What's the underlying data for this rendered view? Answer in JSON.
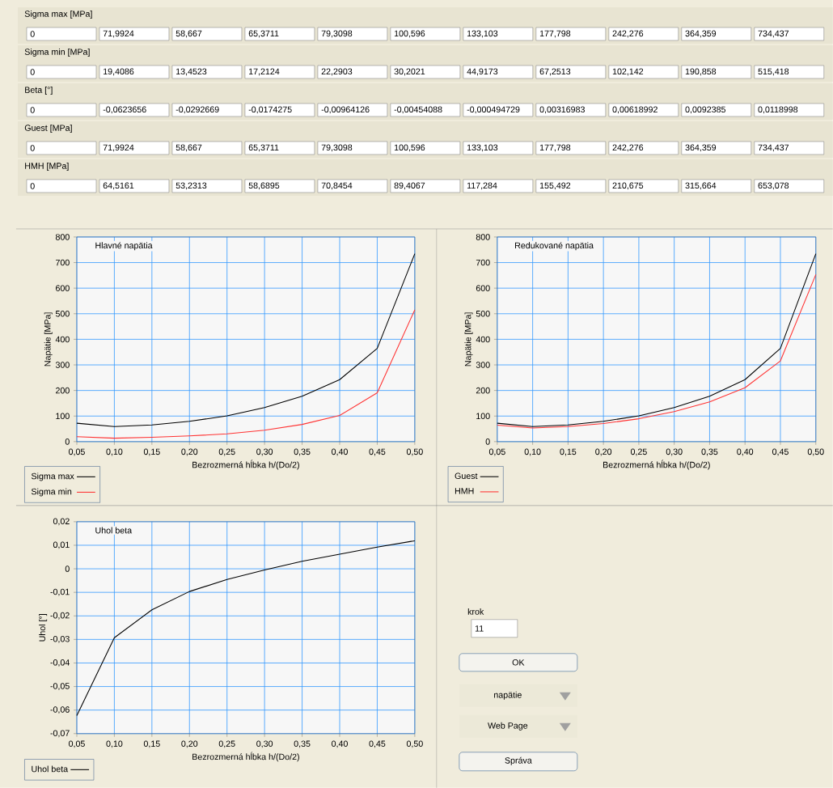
{
  "chart_data": [
    {
      "type": "other",
      "annotations": [
        "Sigma max [MPa]",
        "0",
        "71,9924",
        "58,667",
        "65,3711",
        "79,3098",
        "100,596",
        "133,103",
        "177,798",
        "242,276",
        "364,359",
        "734,437",
        "Sigma min [MPa]",
        "0",
        "19,4086",
        "13,4523",
        "17,2124",
        "22,2903",
        "30,2021",
        "44,9173",
        "67,2513",
        "102,142",
        "190,858",
        "515,418",
        "Beta [°]",
        "0",
        "-0,0623656",
        "-0,0292669",
        "-0,0174275",
        "-0,00964126",
        "-0,00454088",
        "-0,000494729",
        "0,00316983",
        "0,00618992",
        "0,0092385",
        "0,0118998",
        "Guest [MPa]",
        "0",
        "71,9924",
        "58,667",
        "65,3711",
        "79,3098",
        "100,596",
        "133,103",
        "177,798",
        "242,276",
        "364,359",
        "734,437",
        "HMH [MPa]",
        "0",
        "64,5161",
        "53,2313",
        "58,6895",
        "70,8454",
        "89,4067",
        "117,284",
        "155,492",
        "210,675",
        "315,664",
        "653,078"
      ]
    },
    {
      "type": "line",
      "title": "Hlavné napätia",
      "xlabel": "Bezrozmerná hĺbka h/(Do/2)",
      "ylabel": "Napätie [MPa]",
      "x": [
        0.05,
        0.1,
        0.15,
        0.2,
        0.25,
        0.3,
        0.35,
        0.4,
        0.45,
        0.5
      ],
      "series": [
        {
          "name": "Sigma max",
          "color": "#000000",
          "values": [
            71.9924,
            58.667,
            65.3711,
            79.3098,
            100.596,
            133.103,
            177.798,
            242.276,
            364.359,
            734.437
          ]
        },
        {
          "name": "Sigma min",
          "color": "#ff3333",
          "values": [
            19.4086,
            13.4523,
            17.2124,
            22.2903,
            30.2021,
            44.9173,
            67.2513,
            102.142,
            190.858,
            515.418
          ]
        }
      ],
      "xlim": [
        0.05,
        0.5
      ],
      "ylim": [
        0,
        800
      ],
      "xticks": [
        {
          "value": 0.05,
          "label": "0,05"
        },
        {
          "value": 0.1,
          "label": "0,10"
        },
        {
          "value": 0.15,
          "label": "0,15"
        },
        {
          "value": 0.2,
          "label": "0,20"
        },
        {
          "value": 0.25,
          "label": "0,25"
        },
        {
          "value": 0.3,
          "label": "0,30"
        },
        {
          "value": 0.35,
          "label": "0,35"
        },
        {
          "value": 0.4,
          "label": "0,40"
        },
        {
          "value": 0.45,
          "label": "0,45"
        },
        {
          "value": 0.5,
          "label": "0,50"
        }
      ],
      "yticks": [
        0,
        100,
        200,
        300,
        400,
        500,
        600,
        700,
        800
      ],
      "grid": true,
      "legend": "bottom left",
      "line_style": "solid"
    },
    {
      "type": "line",
      "title": "Redukované napätia",
      "xlabel": "Bezrozmerná hĺbka h/(Do/2)",
      "ylabel": "Napätie [MPa]",
      "x": [
        0.05,
        0.1,
        0.15,
        0.2,
        0.25,
        0.3,
        0.35,
        0.4,
        0.45,
        0.5
      ],
      "series": [
        {
          "name": "Guest",
          "color": "#000000",
          "values": [
            71.9924,
            58.667,
            65.3711,
            79.3098,
            100.596,
            133.103,
            177.798,
            242.276,
            364.359,
            734.437
          ]
        },
        {
          "name": "HMH",
          "color": "#ff3333",
          "values": [
            64.5161,
            53.2313,
            58.6895,
            70.8454,
            89.4067,
            117.284,
            155.492,
            210.675,
            315.664,
            653.078
          ]
        }
      ],
      "xlim": [
        0.05,
        0.5
      ],
      "ylim": [
        0,
        800
      ],
      "xticks": [
        {
          "value": 0.05,
          "label": "0,05"
        },
        {
          "value": 0.1,
          "label": "0,10"
        },
        {
          "value": 0.15,
          "label": "0,15"
        },
        {
          "value": 0.2,
          "label": "0,20"
        },
        {
          "value": 0.25,
          "label": "0,25"
        },
        {
          "value": 0.3,
          "label": "0,30"
        },
        {
          "value": 0.35,
          "label": "0,35"
        },
        {
          "value": 0.4,
          "label": "0,40"
        },
        {
          "value": 0.45,
          "label": "0,45"
        },
        {
          "value": 0.5,
          "label": "0,50"
        }
      ],
      "yticks": [
        0,
        100,
        200,
        300,
        400,
        500,
        600,
        700,
        800
      ],
      "grid": true,
      "legend": "bottom left",
      "line_style": "solid"
    },
    {
      "type": "line",
      "title": "Uhol beta",
      "xlabel": "Bezrozmerná hĺbka h/(Do/2)",
      "ylabel": "Uhol [°]",
      "x": [
        0.05,
        0.1,
        0.15,
        0.2,
        0.25,
        0.3,
        0.35,
        0.4,
        0.45,
        0.5
      ],
      "series": [
        {
          "name": "Uhol beta",
          "color": "#000000",
          "values": [
            -0.0623656,
            -0.0292669,
            -0.0174275,
            -0.00964126,
            -0.00454088,
            -0.000494729,
            0.00316983,
            0.00618992,
            0.0092385,
            0.0118998
          ]
        }
      ],
      "xlim": [
        0.05,
        0.5
      ],
      "ylim": [
        -0.07,
        0.02
      ],
      "xticks": [
        {
          "value": 0.05,
          "label": "0,05"
        },
        {
          "value": 0.1,
          "label": "0,10"
        },
        {
          "value": 0.15,
          "label": "0,15"
        },
        {
          "value": 0.2,
          "label": "0,20"
        },
        {
          "value": 0.25,
          "label": "0,25"
        },
        {
          "value": 0.3,
          "label": "0,30"
        },
        {
          "value": 0.35,
          "label": "0,35"
        },
        {
          "value": 0.4,
          "label": "0,40"
        },
        {
          "value": 0.45,
          "label": "0,45"
        },
        {
          "value": 0.5,
          "label": "0,50"
        }
      ],
      "yticks": [
        {
          "value": -0.07,
          "label": "-0,07"
        },
        {
          "value": -0.06,
          "label": "-0,06"
        },
        {
          "value": -0.05,
          "label": "-0,05"
        },
        {
          "value": -0.04,
          "label": "-0,04"
        },
        {
          "value": -0.03,
          "label": "-0,03"
        },
        {
          "value": -0.02,
          "label": "-0,02"
        },
        {
          "value": -0.01,
          "label": "-0,01"
        },
        0,
        {
          "value": 0.01,
          "label": "0,01"
        },
        {
          "value": 0.02,
          "label": "0,02"
        }
      ],
      "grid": true,
      "legend": "bottom left",
      "line_style": "solid"
    },
    {
      "type": "other",
      "annotations": [
        "krok",
        "11",
        "OK",
        "napätie",
        "Web Page",
        "Správa"
      ]
    }
  ]
}
